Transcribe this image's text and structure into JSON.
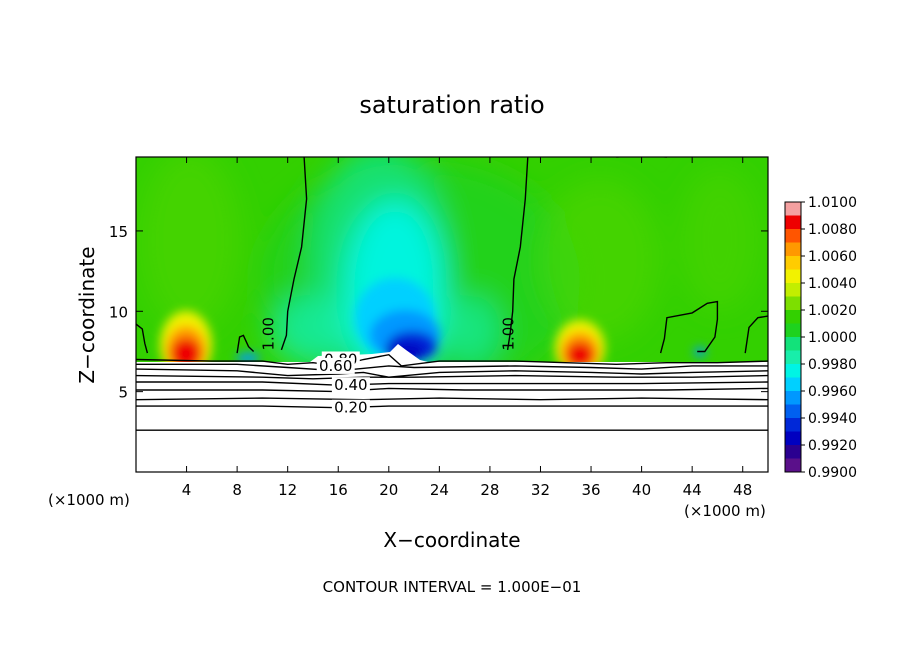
{
  "chart_data": {
    "type": "heatmap",
    "title": "saturation ratio",
    "xlabel": "X−coordinate",
    "ylabel": "Z−coordinate",
    "x_units_left": "(×1000 m)",
    "x_units_right": "(×1000 m)",
    "footer": "CONTOUR INTERVAL = 1.000E−01",
    "xlim": [
      0,
      50
    ],
    "ylim": [
      0,
      19.6
    ],
    "x_ticks": [
      "4",
      "8",
      "12",
      "16",
      "20",
      "24",
      "28",
      "32",
      "36",
      "40",
      "44",
      "48"
    ],
    "x_tick_values": [
      4,
      8,
      12,
      16,
      20,
      24,
      28,
      32,
      36,
      40,
      44,
      48
    ],
    "y_ticks": [
      "5",
      "10",
      "15"
    ],
    "y_tick_values": [
      5,
      10,
      15
    ],
    "colorbar": {
      "labels": [
        "1.0100",
        "1.0080",
        "1.0060",
        "1.0040",
        "1.0020",
        "1.0000",
        "0.9980",
        "0.9960",
        "0.9940",
        "0.9920",
        "0.9900"
      ],
      "range": [
        0.99,
        1.01
      ],
      "colors": [
        "#f4a0a0",
        "#ee0000",
        "#ff5500",
        "#ff9900",
        "#ffcc00",
        "#f2f200",
        "#c2ee00",
        "#7ddf00",
        "#33d000",
        "#1ed21e",
        "#12e27a",
        "#18eeaa",
        "#00f4e4",
        "#00d0ff",
        "#0098ff",
        "#0060f0",
        "#0028d8",
        "#0000c0",
        "#2a0090",
        "#5a108a"
      ]
    },
    "contour_labels": [
      {
        "text": "1.00",
        "x": 10.0,
        "z": 8.6
      },
      {
        "text": "1.00",
        "x": 29.0,
        "z": 8.6
      },
      {
        "text": "0.80",
        "x": 16.2,
        "z": 7.0
      },
      {
        "text": "0.60",
        "x": 15.8,
        "z": 6.6
      },
      {
        "text": "0.40",
        "x": 17.0,
        "z": 5.4
      },
      {
        "text": "0.20",
        "x": 17.0,
        "z": 4.0
      }
    ],
    "contour_lines": [
      {
        "level": 1.0,
        "points": [
          [
            13.3,
            19.6
          ],
          [
            13.5,
            17
          ],
          [
            13.1,
            14
          ],
          [
            12.5,
            12
          ],
          [
            12,
            10
          ],
          [
            11.9,
            8.5
          ],
          [
            11.5,
            7.6
          ]
        ]
      },
      {
        "level": 1.0,
        "points": [
          [
            31,
            19.6
          ],
          [
            30.8,
            17
          ],
          [
            30.4,
            14
          ],
          [
            29.9,
            12
          ],
          [
            29.8,
            10
          ],
          [
            29.6,
            8.6
          ],
          [
            29.4,
            7.6
          ]
        ]
      },
      {
        "level": 1.0,
        "points": [
          [
            0,
            9.2
          ],
          [
            0.5,
            8.9
          ],
          [
            0.7,
            8
          ],
          [
            0.9,
            7.4
          ]
        ]
      },
      {
        "level": 1.0,
        "points": [
          [
            8,
            7.4
          ],
          [
            8.2,
            8.4
          ],
          [
            8.5,
            8.5
          ],
          [
            8.9,
            7.8
          ],
          [
            9.3,
            7.5
          ]
        ]
      },
      {
        "level": 1.0,
        "points": [
          [
            41.5,
            7.4
          ],
          [
            41.8,
            8.3
          ],
          [
            42,
            9.6
          ],
          [
            44,
            9.9
          ],
          [
            45.2,
            10.5
          ],
          [
            46,
            10.6
          ],
          [
            46,
            9.5
          ],
          [
            45.8,
            8.4
          ],
          [
            45,
            7.5
          ],
          [
            44.4,
            7.5
          ]
        ]
      },
      {
        "level": 1.0,
        "points": [
          [
            48.2,
            7.4
          ],
          [
            48.5,
            9.0
          ],
          [
            49.2,
            9.6
          ],
          [
            50,
            9.7
          ]
        ]
      },
      {
        "level": 1.0,
        "points": [
          [
            38,
            19.6
          ],
          [
            40,
            19.7
          ],
          [
            42,
            19.6
          ]
        ]
      },
      {
        "level": 0.9,
        "points": [
          [
            0,
            7.0
          ],
          [
            6,
            6.9
          ],
          [
            10,
            6.9
          ],
          [
            12,
            6.7
          ],
          [
            14,
            6.8
          ],
          [
            16,
            6.6
          ],
          [
            18,
            7.0
          ],
          [
            20,
            7.3
          ],
          [
            21,
            6.6
          ],
          [
            24,
            6.9
          ],
          [
            30,
            6.9
          ],
          [
            34,
            6.8
          ],
          [
            38,
            6.7
          ],
          [
            42,
            6.8
          ],
          [
            46,
            6.8
          ],
          [
            50,
            6.9
          ]
        ]
      },
      {
        "level": 0.8,
        "points": [
          [
            0,
            6.7
          ],
          [
            8,
            6.7
          ],
          [
            12,
            6.5
          ],
          [
            16,
            6.3
          ],
          [
            20,
            6.6
          ],
          [
            22,
            6.5
          ],
          [
            30,
            6.6
          ],
          [
            36,
            6.5
          ],
          [
            40,
            6.4
          ],
          [
            44,
            6.6
          ],
          [
            50,
            6.6
          ]
        ]
      },
      {
        "level": 0.7,
        "points": [
          [
            0,
            6.4
          ],
          [
            8,
            6.3
          ],
          [
            12,
            6.0
          ],
          [
            16,
            6.1
          ],
          [
            18,
            6.2
          ],
          [
            20,
            5.9
          ],
          [
            24,
            6.2
          ],
          [
            30,
            6.3
          ],
          [
            36,
            6.2
          ],
          [
            40,
            6.1
          ],
          [
            44,
            6.2
          ],
          [
            50,
            6.3
          ]
        ]
      },
      {
        "level": 0.6,
        "points": [
          [
            0,
            6.0
          ],
          [
            10,
            5.9
          ],
          [
            14,
            5.8
          ],
          [
            18,
            5.9
          ],
          [
            22,
            5.9
          ],
          [
            30,
            6.0
          ],
          [
            38,
            5.9
          ],
          [
            44,
            5.9
          ],
          [
            50,
            6.0
          ]
        ]
      },
      {
        "level": 0.5,
        "points": [
          [
            0,
            5.6
          ],
          [
            10,
            5.6
          ],
          [
            16,
            5.4
          ],
          [
            20,
            5.5
          ],
          [
            26,
            5.5
          ],
          [
            34,
            5.5
          ],
          [
            40,
            5.5
          ],
          [
            50,
            5.6
          ]
        ]
      },
      {
        "level": 0.4,
        "points": [
          [
            0,
            5.1
          ],
          [
            10,
            5.1
          ],
          [
            16,
            5.0
          ],
          [
            20,
            5.2
          ],
          [
            26,
            5.1
          ],
          [
            34,
            5.1
          ],
          [
            42,
            5.1
          ],
          [
            50,
            5.2
          ]
        ]
      },
      {
        "level": 0.3,
        "points": [
          [
            0,
            4.5
          ],
          [
            10,
            4.6
          ],
          [
            18,
            4.5
          ],
          [
            24,
            4.6
          ],
          [
            32,
            4.5
          ],
          [
            40,
            4.6
          ],
          [
            50,
            4.5
          ]
        ]
      },
      {
        "level": 0.2,
        "points": [
          [
            0,
            4.1
          ],
          [
            10,
            4.1
          ],
          [
            16,
            4.0
          ],
          [
            20,
            4.1
          ],
          [
            30,
            4.1
          ],
          [
            40,
            4.1
          ],
          [
            50,
            4.1
          ]
        ]
      },
      {
        "level": 0.1,
        "points": [
          [
            0,
            2.6
          ],
          [
            10,
            2.6
          ],
          [
            20,
            2.6
          ],
          [
            30,
            2.6
          ],
          [
            40,
            2.6
          ],
          [
            50,
            2.6
          ]
        ]
      }
    ]
  }
}
